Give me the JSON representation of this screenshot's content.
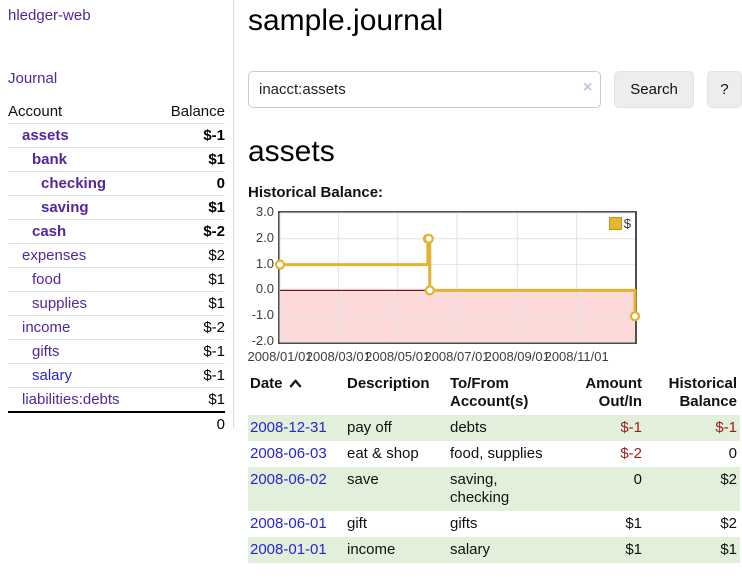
{
  "app": {
    "brand": "hledger-web"
  },
  "sidebar": {
    "journal_link": "Journal",
    "account_header": "Account",
    "balance_header": "Balance",
    "accounts": [
      {
        "name": "assets",
        "balance": "$-1"
      },
      {
        "name": "bank",
        "balance": "$1"
      },
      {
        "name": "checking",
        "balance": "0"
      },
      {
        "name": "saving",
        "balance": "$1"
      },
      {
        "name": "cash",
        "balance": "$-2"
      },
      {
        "name": "expenses",
        "balance": "$2"
      },
      {
        "name": "food",
        "balance": "$1"
      },
      {
        "name": "supplies",
        "balance": "$1"
      },
      {
        "name": "income",
        "balance": "$-2"
      },
      {
        "name": "gifts",
        "balance": "$-1"
      },
      {
        "name": "salary",
        "balance": "$-1"
      },
      {
        "name": "liabilities:debts",
        "balance": "$1"
      }
    ],
    "total": "0"
  },
  "header": {
    "title": "sample.journal"
  },
  "search": {
    "value": "inacct:assets",
    "clear_icon": "×",
    "search_button": "Search",
    "help_button": "?"
  },
  "account_page": {
    "heading": "assets",
    "chart_title": "Historical Balance:"
  },
  "chart_data": {
    "type": "line",
    "step": true,
    "title": "Historical Balance:",
    "series": [
      {
        "name": "$",
        "points": [
          [
            "2008-01-01",
            1
          ],
          [
            "2008-06-01",
            2
          ],
          [
            "2008-06-02",
            2
          ],
          [
            "2008-06-03",
            0
          ],
          [
            "2008-12-31",
            -1
          ]
        ]
      }
    ],
    "ylim": [
      -2.0,
      3.0
    ],
    "yticks": [
      3.0,
      2.0,
      1.0,
      0.0,
      -1.0,
      -2.0
    ],
    "ytick_labels": [
      "3.0",
      "2.0",
      "1.0",
      "0.0",
      "-1.0",
      "-2.0"
    ],
    "xtick_labels": [
      "2008/01/01",
      "2008/03/01",
      "2008/05/01",
      "2008/07/01",
      "2008/09/01",
      "2008/11/01"
    ],
    "legend": {
      "label": "$",
      "position": "top-right"
    },
    "grid": true,
    "colors": {
      "line": "#e3b230",
      "negative_region": "#fcdada",
      "zero_line": "#871111",
      "grid": "#e2e2e2"
    }
  },
  "register": {
    "headers": {
      "date": "Date",
      "description": "Description",
      "account": "To/From Account(s)",
      "amount": "Amount Out/In",
      "balance": "Historical Balance"
    },
    "rows": [
      {
        "date": "2008-12-31",
        "description": "pay off",
        "accounts": "debts",
        "amount": "$-1",
        "balance": "$-1"
      },
      {
        "date": "2008-06-03",
        "description": "eat & shop",
        "accounts": "food, supplies",
        "amount": "$-2",
        "balance": "0"
      },
      {
        "date": "2008-06-02",
        "description": "save",
        "accounts": "saving, checking",
        "amount": "0",
        "balance": "$2"
      },
      {
        "date": "2008-06-01",
        "description": "gift",
        "accounts": "gifts",
        "amount": "$1",
        "balance": "$2"
      },
      {
        "date": "2008-01-01",
        "description": "income",
        "accounts": "salary",
        "amount": "$1",
        "balance": "$1"
      }
    ]
  }
}
